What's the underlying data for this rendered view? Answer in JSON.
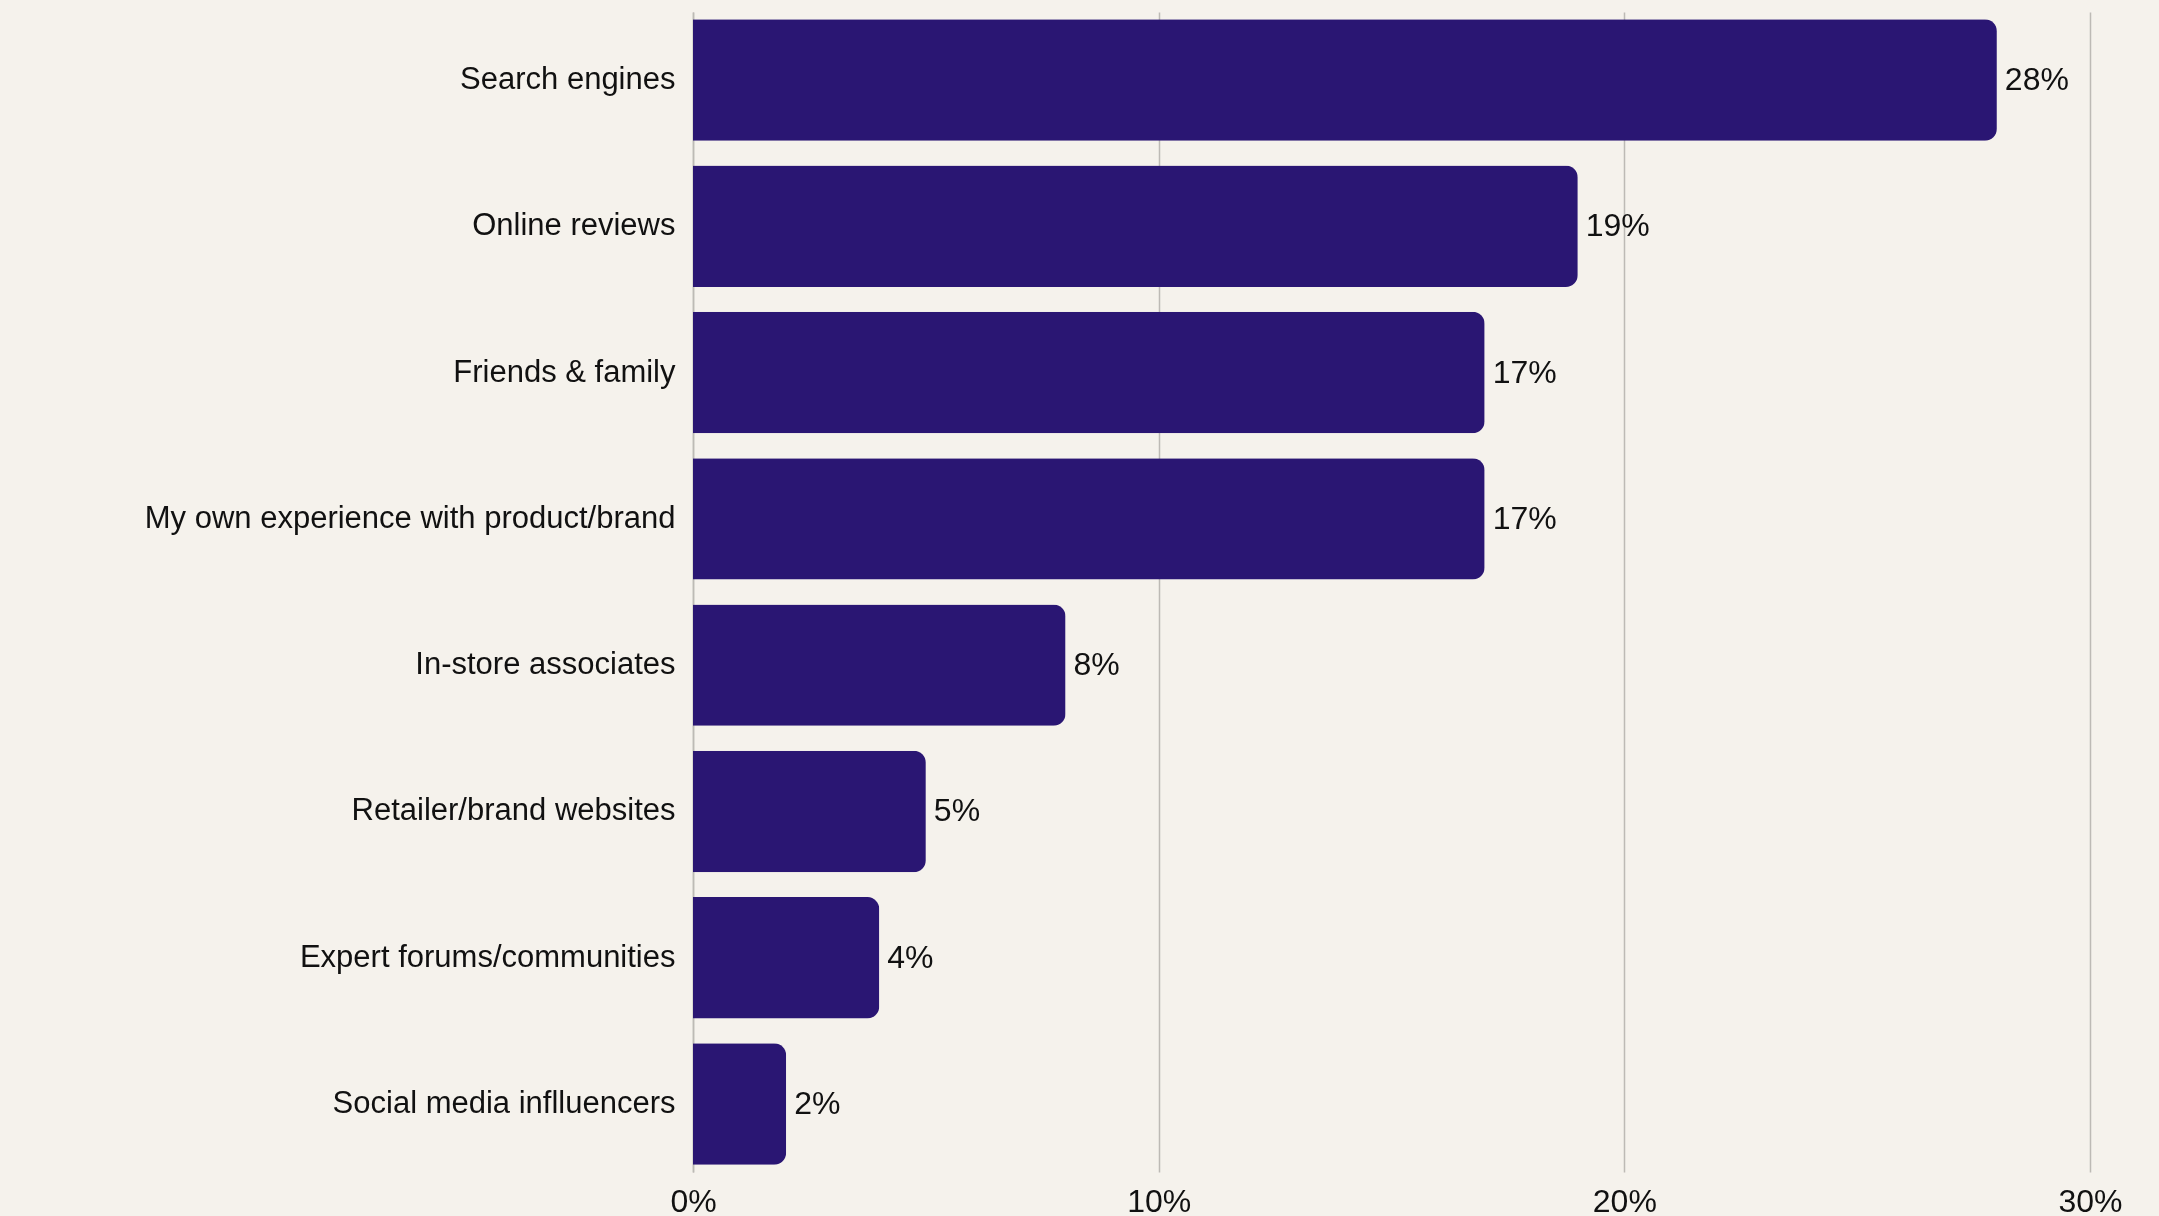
{
  "chart_data": {
    "type": "bar",
    "orientation": "horizontal",
    "categories": [
      "Search engines",
      "Online reviews",
      "Friends & family",
      "My own experience with product/brand",
      "In-store associates",
      "Retailer/brand websites",
      "Expert forums/communities",
      "Social media inflluencers"
    ],
    "values": [
      28,
      19,
      17,
      17,
      8,
      5,
      4,
      2
    ],
    "value_labels": [
      "28%",
      "19%",
      "17%",
      "17%",
      "8%",
      "5%",
      "4%",
      "2%"
    ],
    "color": "#2a1673",
    "xlim": [
      0,
      30
    ],
    "xticks": [
      {
        "value": 0,
        "label": "0%"
      },
      {
        "value": 10,
        "label": "10%"
      },
      {
        "value": 20,
        "label": "20%"
      },
      {
        "value": 30,
        "label": "30%"
      }
    ],
    "grid": "x"
  }
}
